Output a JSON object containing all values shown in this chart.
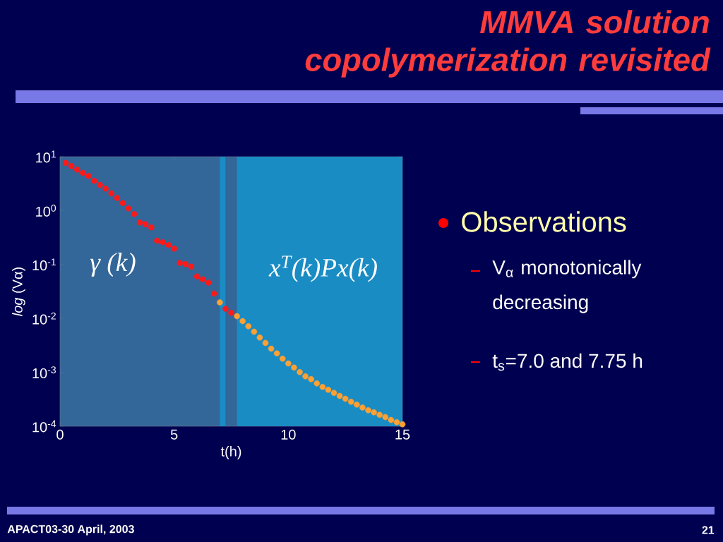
{
  "chart_data": {
    "type": "scatter",
    "title": "MMVA solution copolymerization revisited",
    "xlabel": "t(h)",
    "ylabel": "*log* (Vα)",
    "series": [
      {
        "color": "#ff1a1a",
        "x": [
          0.25,
          0.5,
          0.75,
          1.0,
          1.25,
          1.5,
          1.75,
          2.0,
          2.25,
          2.5,
          2.75,
          3.0,
          3.25,
          3.5,
          3.75,
          4.0,
          4.25,
          4.5,
          4.75,
          5.0,
          5.25,
          5.5,
          5.75,
          6.0,
          6.25,
          6.5,
          6.75,
          7.25,
          7.5
        ],
        "values": [
          7.69,
          6.7,
          5.75,
          5.0,
          4.4,
          3.56,
          2.99,
          2.55,
          2.08,
          1.71,
          1.38,
          1.1,
          0.863,
          0.601,
          0.558,
          0.486,
          0.277,
          0.258,
          0.231,
          0.197,
          0.107,
          0.102,
          0.0916,
          0.0601,
          0.0532,
          0.0461,
          0.0289,
          0.0151,
          0.0127
        ]
      },
      {
        "color": "#ffa033",
        "x": [
          7.0,
          7.75,
          8.0,
          8.25,
          8.5,
          8.75,
          9.0,
          9.25,
          9.5,
          9.75,
          10.0,
          10.25,
          10.5,
          10.75,
          11.0,
          11.25,
          11.5,
          11.75,
          12.0,
          12.25,
          12.5,
          12.75,
          13.0,
          13.25,
          13.5,
          13.75,
          14.0,
          14.25,
          14.5,
          14.75,
          15.0
        ],
        "values": [
          0.0198,
          0.011,
          0.00891,
          0.00716,
          0.00568,
          0.00442,
          0.00351,
          0.00275,
          0.00225,
          0.00179,
          0.00146,
          0.00123,
          0.00101,
          0.000841,
          0.000746,
          0.000624,
          0.000536,
          0.000475,
          0.000416,
          0.000366,
          0.000324,
          0.000284,
          0.000252,
          0.000223,
          0.000198,
          0.000181,
          0.000163,
          0.000148,
          0.000131,
          0.000119,
          0.000109
        ]
      }
    ],
    "xlim": [
      0,
      15
    ],
    "xticks": [
      0,
      5,
      10,
      15
    ],
    "ylim": [
      0.0001,
      10
    ],
    "yticks": [
      {
        "value": 0.0001,
        "label": "10$^{-4}$"
      },
      {
        "value": 0.001,
        "label": "10$^{-3}$"
      },
      {
        "value": 0.01,
        "label": "10$^{-2}$"
      },
      {
        "value": 0.1,
        "label": "10$^{-1}$"
      },
      {
        "value": 1,
        "label": "10$^{0}$"
      },
      {
        "value": 10,
        "label": "10$^{1}$"
      }
    ],
    "log": true,
    "marker": "circle",
    "bands": [
      {
        "axis": "x",
        "from": 7.0,
        "to": 7.25,
        "color": "#1a8cc4"
      },
      {
        "axis": "x",
        "from": 7.75,
        "to": 15,
        "color": "#1a8cc4"
      }
    ],
    "annotations": [
      "*γ* (*k*)",
      "x$^{T}$(k)Px(k)",
      "Observations",
      "V$_{α}$ monotonically decreasing",
      "t$_{s}$=7.0 and 7.75 h",
      "APACT03-30 April, 2003",
      "21"
    ]
  }
}
